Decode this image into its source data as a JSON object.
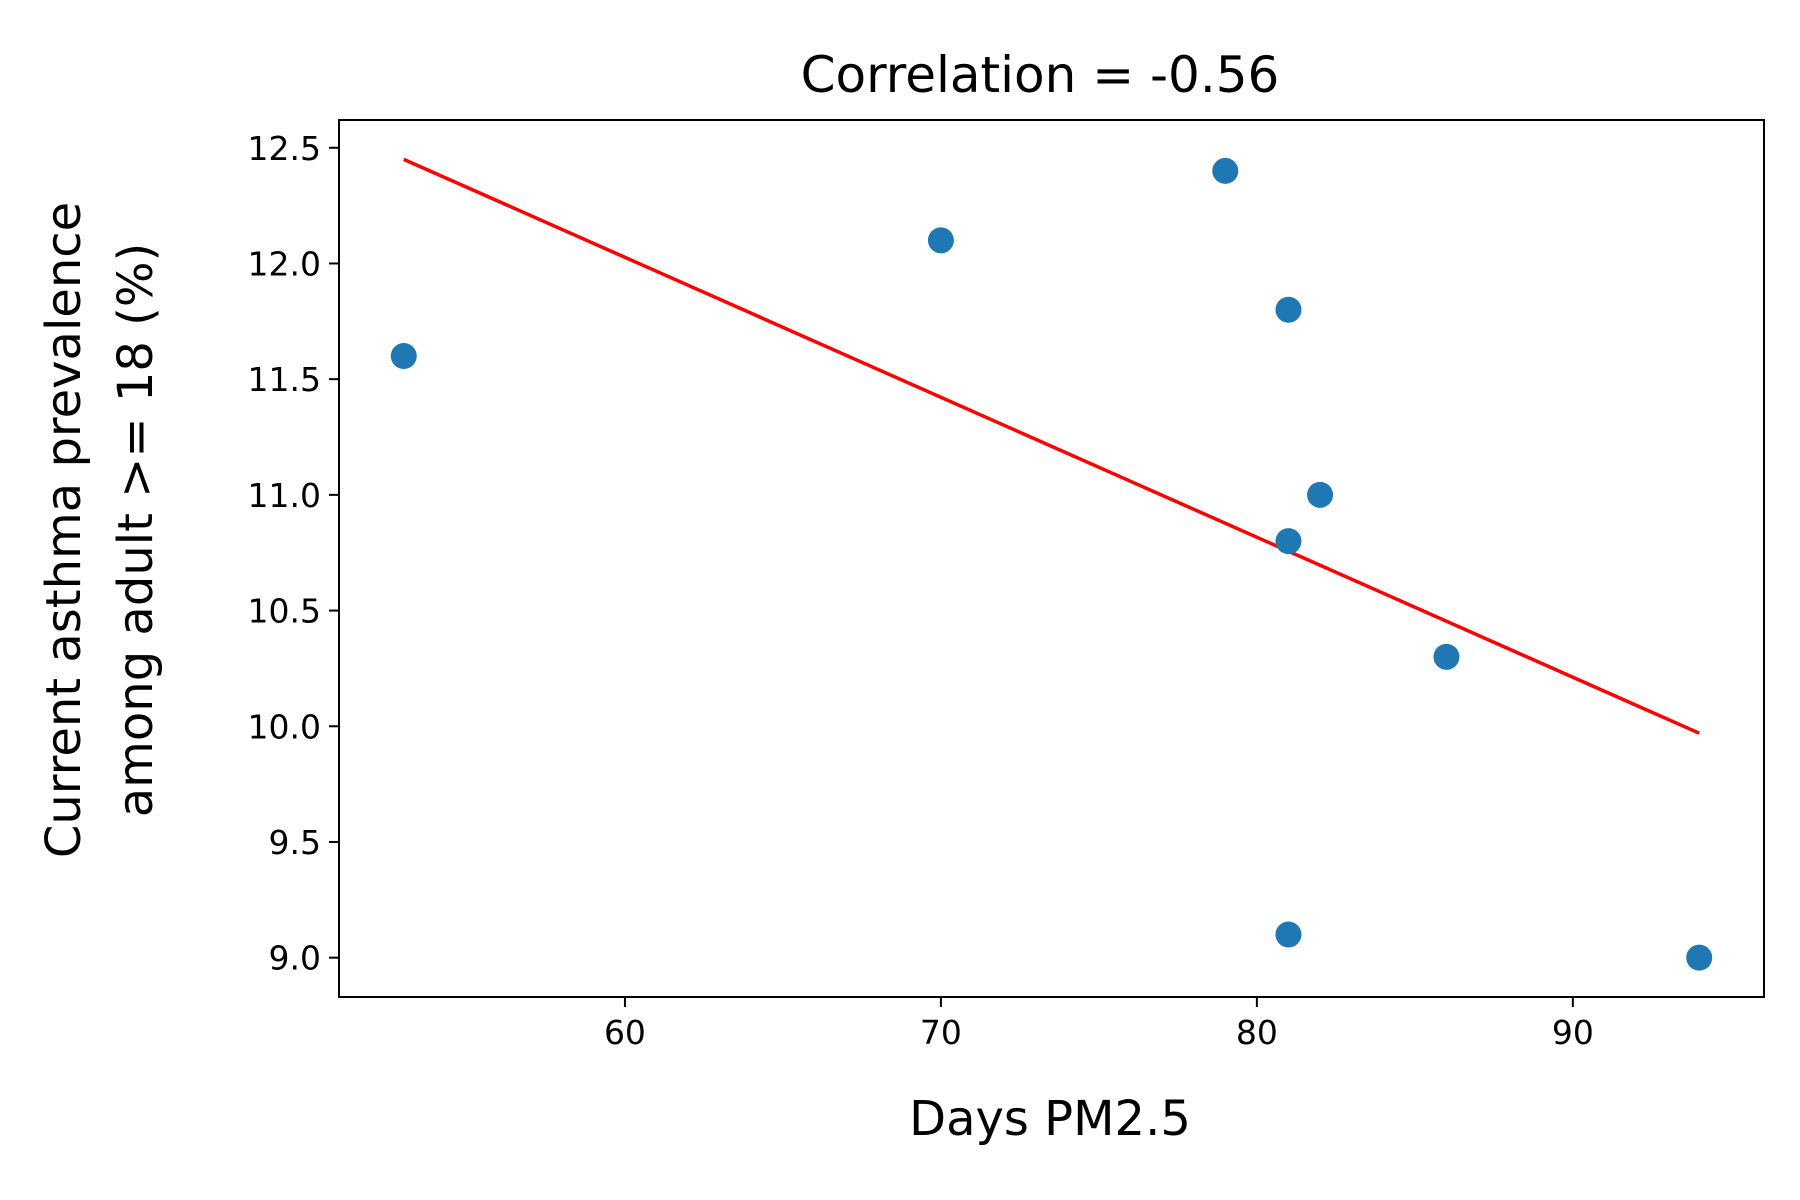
{
  "chart_data": {
    "type": "scatter",
    "title": "Correlation = -0.56",
    "xlabel": "Days PM2.5",
    "ylabel_lines": [
      "Current asthma prevalence",
      "among adult >= 18 (%)"
    ],
    "xlim": [
      50.95,
      96.05
    ],
    "ylim": [
      8.83,
      12.62
    ],
    "x_ticks": [
      60,
      70,
      80,
      90
    ],
    "y_ticks": [
      9.0,
      9.5,
      10.0,
      10.5,
      11.0,
      11.5,
      12.0,
      12.5
    ],
    "x_tick_labels": [
      "60",
      "70",
      "80",
      "90"
    ],
    "y_tick_labels": [
      "9.0",
      "9.5",
      "10.0",
      "10.5",
      "11.0",
      "11.5",
      "12.0",
      "12.5"
    ],
    "grid": false,
    "series": [
      {
        "kind": "points",
        "color": "#1f77b4",
        "x": [
          53,
          70,
          79,
          81,
          81,
          81,
          82,
          86,
          94
        ],
        "y": [
          11.6,
          12.1,
          12.4,
          11.8,
          10.8,
          9.1,
          11.0,
          10.3,
          9.0
        ]
      },
      {
        "kind": "trend_line",
        "color": "#ff0000",
        "x": [
          53,
          94
        ],
        "y": [
          12.45,
          9.97
        ]
      }
    ]
  }
}
